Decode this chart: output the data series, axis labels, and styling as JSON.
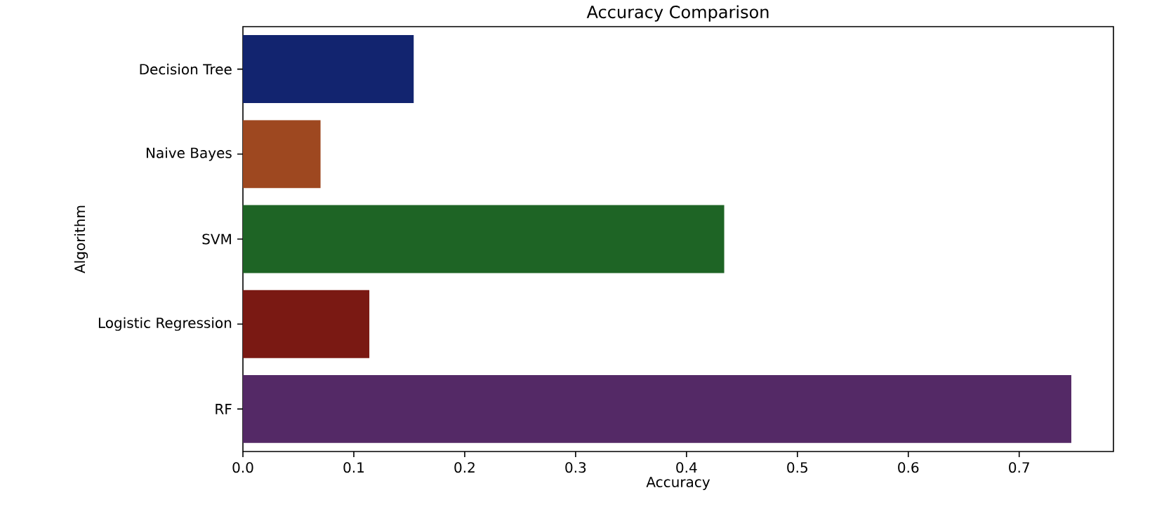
{
  "chart_data": {
    "type": "bar",
    "orientation": "horizontal",
    "title": "Accuracy Comparison",
    "xlabel": "Accuracy",
    "ylabel": "Algorithm",
    "categories": [
      "Decision Tree",
      "Naive Bayes",
      "SVM",
      "Logistic Regression",
      "RF"
    ],
    "values": [
      0.154,
      0.07,
      0.434,
      0.114,
      0.747
    ],
    "colors": [
      "#12246f",
      "#9e4820",
      "#1e6425",
      "#7a1913",
      "#542966"
    ],
    "xlim": [
      0,
      0.785
    ],
    "xticks": [
      {
        "value": 0,
        "label": "0.0"
      },
      0.1,
      0.2,
      0.3,
      0.4,
      0.5,
      0.6,
      0.7
    ],
    "grid": false
  }
}
